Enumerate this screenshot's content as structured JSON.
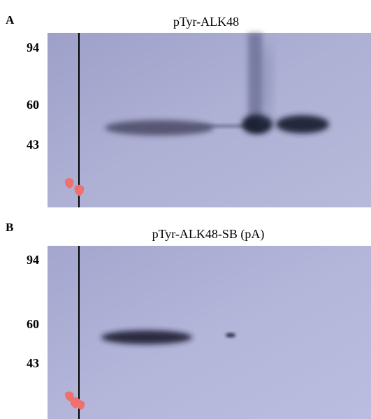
{
  "panels": [
    {
      "label": "A",
      "title": "pTyr-ALK48",
      "markers": [
        "94",
        "60",
        "43"
      ]
    },
    {
      "label": "B",
      "title": "pTyr-ALK48-SB (pA)",
      "markers": [
        "94",
        "60",
        "43"
      ]
    }
  ]
}
